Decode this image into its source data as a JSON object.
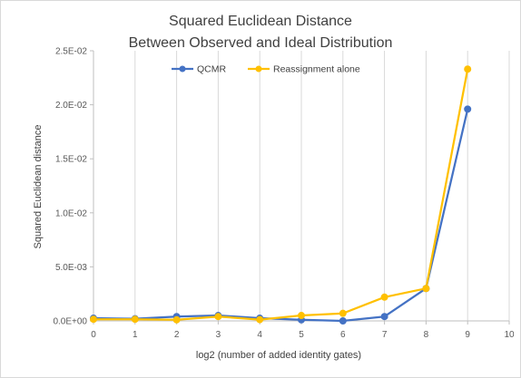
{
  "chart_data": {
    "type": "line",
    "title": [
      "Squared Euclidean Distance",
      "Between Observed and Ideal Distribution"
    ],
    "xlabel": "log2 (number of added identity gates)",
    "ylabel": "Squared Euclidean distance",
    "xlim": [
      0,
      10
    ],
    "ylim": [
      0,
      0.025
    ],
    "x_ticks": [
      0,
      1,
      2,
      3,
      4,
      5,
      6,
      7,
      8,
      9,
      10
    ],
    "x_tick_labels": [
      "0",
      "1",
      "2",
      "3",
      "4",
      "5",
      "6",
      "7",
      "8",
      "9",
      "10"
    ],
    "y_ticks": [
      0,
      0.005,
      0.01,
      0.015,
      0.02,
      0.025
    ],
    "y_tick_labels": [
      "0.0E+00",
      "5.0E-03",
      "1.0E-02",
      "1.5E-02",
      "2.0E-02",
      "2.5E-02"
    ],
    "grid": "vertical",
    "legend_position": "top-center",
    "series": [
      {
        "name": "QCMR",
        "color": "#4472c4",
        "x": [
          0,
          1,
          2,
          3,
          4,
          5,
          6,
          7,
          8,
          9
        ],
        "y": [
          0.00025,
          0.0002,
          0.0004,
          0.0005,
          0.00025,
          0.0001,
          0.0,
          0.0004,
          0.003,
          0.0196
        ]
      },
      {
        "name": "Reassignment alone",
        "color": "#ffc000",
        "x": [
          0,
          1,
          2,
          3,
          4,
          5,
          6,
          7,
          8,
          9
        ],
        "y": [
          0.00015,
          0.00015,
          0.0001,
          0.0004,
          0.00012,
          0.0005,
          0.0007,
          0.0022,
          0.003,
          0.0233
        ]
      }
    ]
  }
}
